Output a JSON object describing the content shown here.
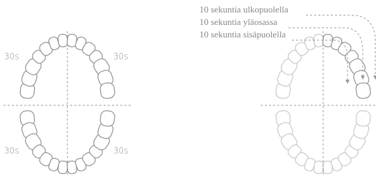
{
  "left_diagram": {
    "labels": [
      "30s",
      "30s",
      "30s",
      "30s"
    ]
  },
  "right_diagram": {
    "instructions": [
      "10 sekuntia ulkopuolella",
      "10 sekuntia yläosassa",
      "10 sekuntia sisäpuolella"
    ]
  }
}
